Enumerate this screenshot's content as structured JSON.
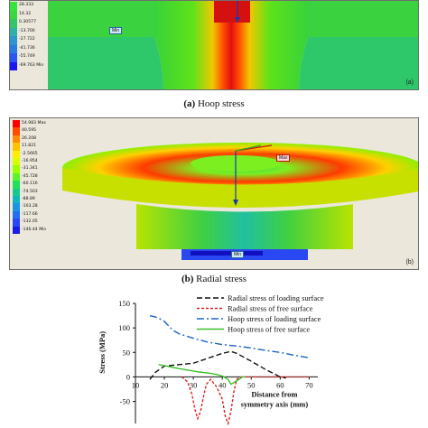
{
  "panel_a": {
    "legend": [
      "28.333",
      "14.32",
      "0.30577",
      "-13.700",
      "-27.722",
      "-41.736",
      "-55.749",
      "-69.763 Min"
    ],
    "legend_colors": [
      "#33e63a",
      "#3cd640",
      "#32c66a",
      "#2fb0a8",
      "#2d95cf",
      "#2c79e2",
      "#2a54ef",
      "#1818f0"
    ],
    "min_label": "Min",
    "tag": "(a)",
    "caption_letter": "(a)",
    "caption_text": "Hoop stress"
  },
  "panel_b": {
    "legend": [
      "54.983 Max",
      "40.595",
      "26.208",
      "11.821",
      "-2.5665",
      "-16.954",
      "-31.341",
      "-45.728",
      "-60.116",
      "-74.503",
      "-88.89",
      "-103.28",
      "-117.66",
      "-132.05",
      "-146.44 Min"
    ],
    "legend_colors": [
      "#ff0000",
      "#ff4a00",
      "#ff8c00",
      "#ffc400",
      "#ffee00",
      "#d8ff00",
      "#9cff00",
      "#5cf22e",
      "#22e05a",
      "#16c98d",
      "#10b4bd",
      "#1a94e0",
      "#216ff0",
      "#2a48f2",
      "#1a1ae8"
    ],
    "max_label": "Max",
    "min_label": "Min",
    "tag": "(b)",
    "caption_letter": "(b)",
    "caption_text": "Radial stress"
  },
  "chart_data": {
    "type": "line",
    "ylabel": "Stress (MPa)",
    "xlabel": "Distance from symmetry axis (mm)",
    "xlim": [
      10,
      73
    ],
    "ylim": [
      -95,
      150
    ],
    "xticks": [
      10,
      20,
      30,
      40,
      50,
      60,
      70
    ],
    "yticks": [
      150,
      100,
      50,
      0,
      -50
    ],
    "series": [
      {
        "name": "Radial stress of loading surface",
        "color": "#111111",
        "dash": "6,3",
        "x": [
          15,
          17,
          20,
          25,
          30,
          35,
          40,
          43,
          45,
          50,
          55,
          58,
          60,
          62
        ],
        "y": [
          -5,
          10,
          22,
          25,
          28,
          38,
          48,
          52,
          48,
          32,
          15,
          6,
          0,
          -2
        ]
      },
      {
        "name": "Radial stress of free surface",
        "color": "#e02020",
        "dash": "3,2",
        "x": [
          26,
          28,
          29.5,
          30.5,
          31.5,
          32.5,
          33.5,
          34.5,
          36,
          38,
          40,
          41,
          42,
          43,
          44,
          45,
          46,
          47,
          48,
          50,
          55,
          60,
          65,
          70
        ],
        "y": [
          0,
          -10,
          -35,
          -65,
          -85,
          -70,
          -40,
          -15,
          -5,
          -20,
          -45,
          -80,
          -95,
          -70,
          -30,
          -5,
          -1,
          0,
          0,
          0,
          0,
          0,
          0,
          0
        ]
      },
      {
        "name": "Hoop stress of loading surface",
        "color": "#1e63c6",
        "dash": "8,3,2,3",
        "x": [
          15,
          17,
          19,
          20,
          23,
          25,
          30,
          35,
          40,
          45,
          50,
          55,
          60,
          65,
          70
        ],
        "y": [
          125,
          122,
          117,
          113,
          95,
          88,
          79,
          71,
          66,
          63,
          59,
          54,
          50,
          44,
          39
        ]
      },
      {
        "name": "Hoop stress of free surface",
        "color": "#3bbf2a",
        "dash": "",
        "x": [
          18,
          20,
          25,
          30,
          32,
          35,
          38,
          40,
          42,
          43,
          45,
          47,
          48
        ],
        "y": [
          25,
          23,
          17,
          12,
          10,
          8,
          5,
          2,
          -5,
          -15,
          -8,
          0,
          0
        ]
      }
    ]
  }
}
